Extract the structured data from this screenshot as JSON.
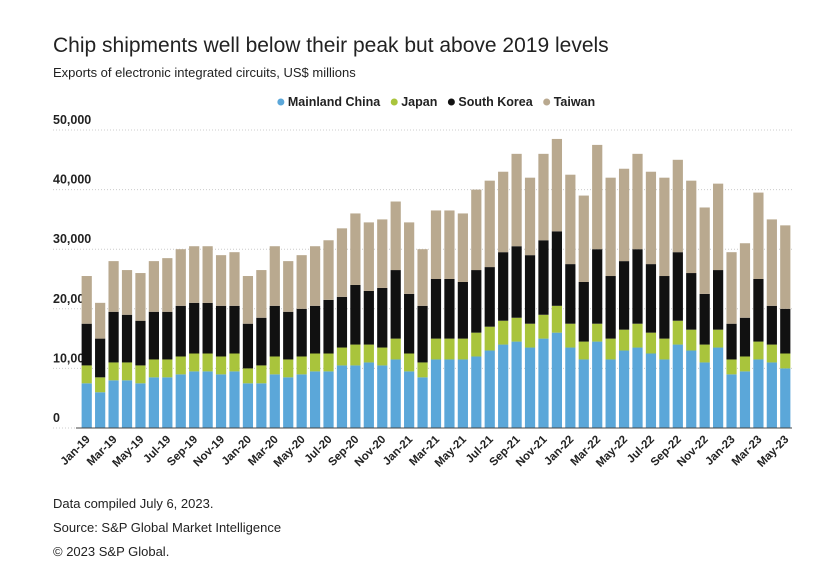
{
  "chart_data": {
    "type": "stacked_bar",
    "title": "Chip shipments well below their peak but above 2019 levels",
    "subtitle": "Exports of electronic integrated circuits, US$ millions",
    "categories": [
      "Jan-19",
      null,
      "Mar-19",
      null,
      "May-19",
      null,
      "Jul-19",
      null,
      "Sep-19",
      null,
      "Nov-19",
      null,
      "Jan-20",
      null,
      "Mar-20",
      null,
      "May-20",
      null,
      "Jul-20",
      null,
      "Sep-20",
      null,
      "Nov-20",
      null,
      "Jan-21",
      null,
      "Mar-21",
      null,
      "May-21",
      null,
      "Jul-21",
      null,
      "Sep-21",
      null,
      "Nov-21",
      null,
      "Jan-22",
      null,
      "Mar-22",
      null,
      "May-22",
      null,
      "Jul-22",
      null,
      "Sep-22",
      null,
      "Nov-22",
      null,
      "Jan-23",
      null,
      "Mar-23",
      null,
      "May-23"
    ],
    "series": [
      {
        "name": "Mainland China",
        "color": "#5ba7d9",
        "values": [
          7500,
          6000,
          8000,
          8000,
          7500,
          8500,
          8500,
          9000,
          9500,
          9500,
          9000,
          9500,
          7500,
          7500,
          9000,
          8500,
          9000,
          9500,
          9500,
          10500,
          10500,
          11000,
          10500,
          11500,
          9500,
          8500,
          11500,
          11500,
          11500,
          12000,
          13000,
          14000,
          14500,
          13500,
          15000,
          16000,
          13500,
          11500,
          14500,
          11500,
          13000,
          13500,
          12500,
          11500,
          14000,
          13000,
          11000,
          13500,
          9000,
          9500,
          11500,
          11000,
          10000
        ]
      },
      {
        "name": "Japan",
        "color": "#a9c43c",
        "values": [
          3000,
          2500,
          3000,
          3000,
          3000,
          3000,
          3000,
          3000,
          3000,
          3000,
          3000,
          3000,
          2500,
          3000,
          3000,
          3000,
          3000,
          3000,
          3000,
          3000,
          3500,
          3000,
          3000,
          3500,
          3000,
          2500,
          3500,
          3500,
          3500,
          4000,
          4000,
          4000,
          4000,
          4000,
          4000,
          4500,
          4000,
          3000,
          3000,
          3500,
          3500,
          4000,
          3500,
          3500,
          4000,
          3500,
          3000,
          3000,
          2500,
          2500,
          3000,
          3000,
          2500
        ]
      },
      {
        "name": "South Korea",
        "color": "#111111",
        "values": [
          7000,
          6500,
          8500,
          8000,
          7500,
          8000,
          8000,
          8500,
          8500,
          8500,
          8500,
          8000,
          7500,
          8000,
          8500,
          8000,
          8000,
          8000,
          9000,
          8500,
          10000,
          9000,
          10000,
          11500,
          10000,
          9500,
          10000,
          10000,
          9500,
          10500,
          10000,
          11500,
          12000,
          11500,
          12500,
          12500,
          10000,
          10000,
          12500,
          10500,
          11500,
          12500,
          11500,
          10500,
          11500,
          9500,
          8500,
          10000,
          6000,
          6500,
          10500,
          6500,
          7500
        ]
      },
      {
        "name": "Taiwan",
        "color": "#b9a98f",
        "values": [
          8000,
          6000,
          8500,
          7500,
          8000,
          8500,
          9000,
          9500,
          9500,
          9500,
          8500,
          9000,
          8000,
          8000,
          10000,
          8500,
          9000,
          10000,
          10000,
          11500,
          12000,
          11500,
          11500,
          11500,
          12000,
          9500,
          11500,
          11500,
          11500,
          13500,
          14500,
          13500,
          15500,
          13000,
          14500,
          15500,
          15000,
          14500,
          17500,
          16500,
          15500,
          16000,
          15500,
          16500,
          15500,
          15500,
          14500,
          14500,
          12000,
          12500,
          14500,
          14500,
          14000
        ]
      }
    ],
    "ylim": [
      0,
      50000
    ],
    "yticks": [
      0,
      {
        "value": 10000,
        "label": "10,000"
      },
      {
        "value": 20000,
        "label": "20,000"
      },
      {
        "value": 30000,
        "label": "30,000"
      },
      {
        "value": 40000,
        "label": "40,000"
      },
      {
        "value": 50000,
        "label": "50,000"
      }
    ],
    "grid": true,
    "legend": "top",
    "notes": [
      "Data compiled July 6, 2023.",
      "Source: S&P Global Market Intelligence",
      "© 2023 S&P Global."
    ]
  }
}
